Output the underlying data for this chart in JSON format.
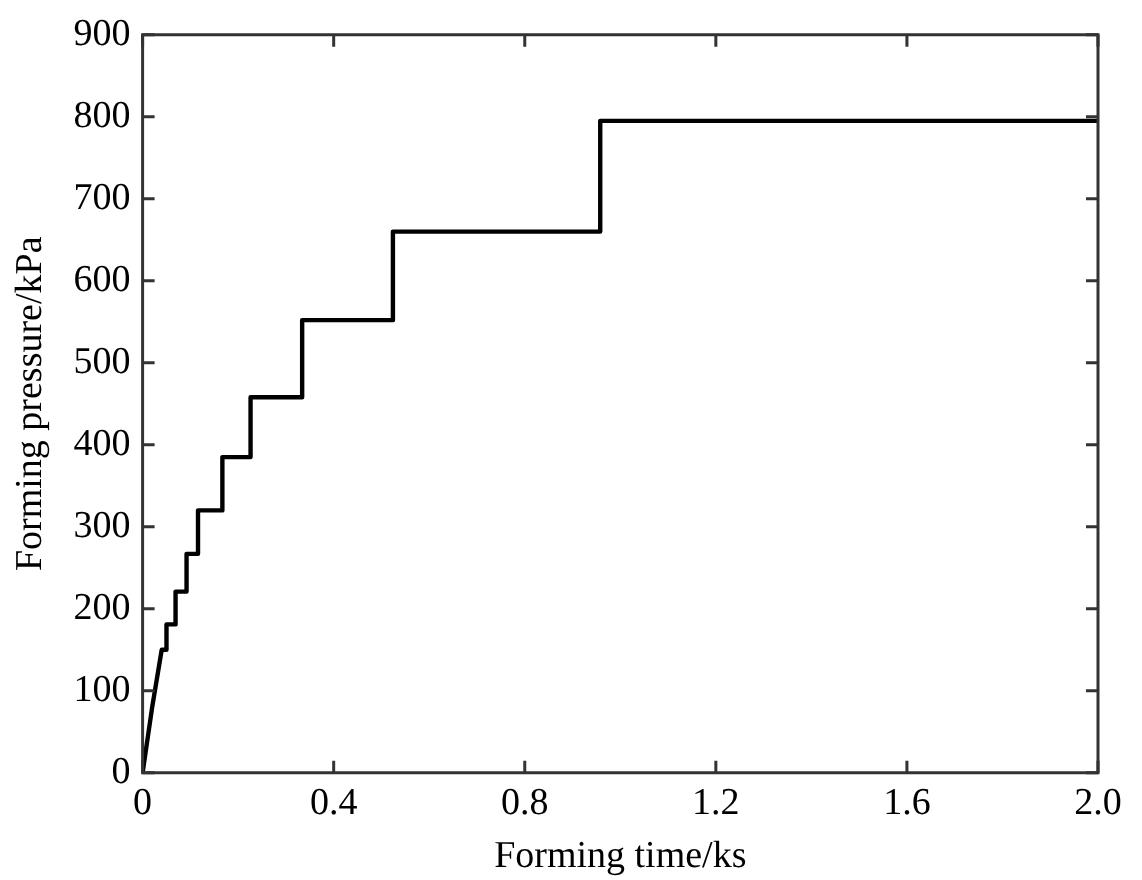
{
  "chart_data": {
    "type": "line",
    "xlabel": "Forming time/ks",
    "ylabel": "Forming pressure/kPa",
    "x": [
      0,
      0.02,
      0.04,
      0.05,
      0.05,
      0.069,
      0.069,
      0.092,
      0.092,
      0.116,
      0.116,
      0.167,
      0.167,
      0.226,
      0.226,
      0.334,
      0.334,
      0.524,
      0.524,
      0.958,
      0.958,
      2.0
    ],
    "series": [
      {
        "color": "#000000",
        "values": [
          0,
          80,
          150,
          150,
          181,
          181,
          221,
          221,
          267,
          267,
          320,
          320,
          385,
          385,
          458,
          458,
          552,
          552,
          660,
          660,
          795,
          795
        ]
      }
    ],
    "xlim": [
      0,
      2.0
    ],
    "xticks": [
      0,
      0.4,
      0.8,
      1.2,
      1.6,
      {
        "value": 2,
        "label": "2.0"
      }
    ],
    "ylim": [
      0,
      900
    ],
    "yticks": [
      0,
      100,
      200,
      300,
      400,
      500,
      600,
      700,
      800,
      900
    ],
    "grid": false,
    "legend": false,
    "marker": "none",
    "line_style": "solid"
  }
}
